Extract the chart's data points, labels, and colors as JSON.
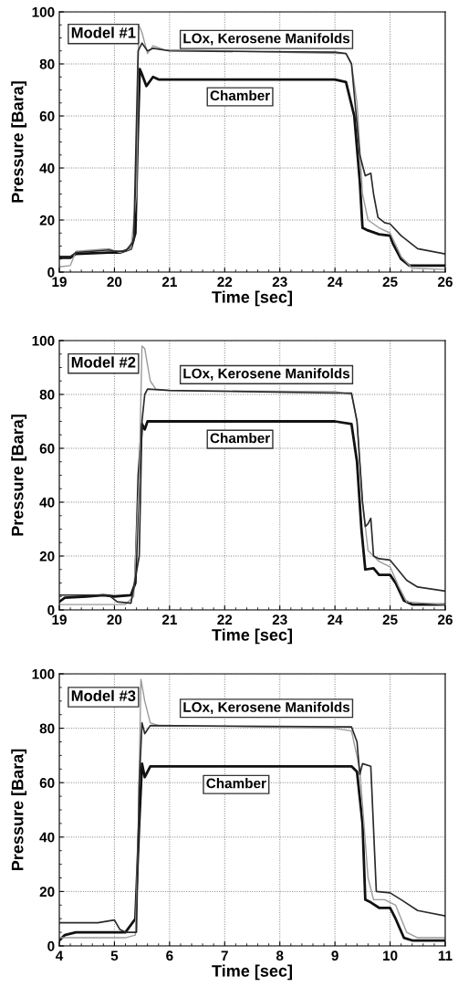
{
  "chart_data": [
    {
      "type": "line",
      "xlabel": "Time [sec]",
      "ylabel": "Pressure [Bara]",
      "xlim": [
        19,
        26
      ],
      "ylim": [
        0,
        100
      ],
      "xticks": [
        19,
        20,
        21,
        22,
        23,
        24,
        25,
        26
      ],
      "yticks": [
        0,
        20,
        40,
        60,
        80,
        100
      ],
      "grid": true,
      "annotations": [
        "Model #1",
        "LOx, Kerosene Manifolds",
        "Chamber"
      ],
      "series": [
        {
          "color": "#111111",
          "x": [
            19,
            19.2,
            19.3,
            19.9,
            20.1,
            20.3,
            20.38,
            20.42,
            20.46,
            20.5,
            20.58,
            20.7,
            20.8,
            24,
            24.2,
            24.35,
            24.45,
            24.5,
            24.6,
            24.8,
            25,
            25.05,
            25.2,
            25.35,
            26
          ],
          "values": [
            5.5,
            5.5,
            7,
            7.5,
            7.5,
            9,
            15,
            50,
            78,
            76,
            71.5,
            75,
            74,
            74,
            73,
            60,
            35,
            17,
            16,
            14.5,
            14,
            11,
            5,
            2.5,
            2.5
          ]
        },
        {
          "color": "#9a9a9a",
          "x": [
            19,
            19.2,
            19.3,
            19.9,
            20.1,
            20.3,
            20.4,
            20.44,
            20.5,
            20.6,
            20.7,
            20.9,
            24,
            24.2,
            24.3,
            24.4,
            24.5,
            24.6,
            24.8,
            25,
            25.2,
            25.4,
            26
          ],
          "values": [
            2,
            2.5,
            8,
            9,
            7.5,
            9,
            30,
            95,
            92,
            84,
            87,
            85.5,
            84,
            84,
            80,
            65,
            30,
            20,
            17,
            15,
            6,
            1.5,
            1
          ]
        },
        {
          "color": "#2a2a2a",
          "x": [
            19,
            19.2,
            19.3,
            19.9,
            20,
            20.2,
            20.35,
            20.43,
            20.5,
            20.6,
            20.7,
            21,
            24,
            24.2,
            24.3,
            24.45,
            24.55,
            24.65,
            24.7,
            24.78,
            24.9,
            25,
            25.2,
            25.5,
            26
          ],
          "values": [
            6,
            6,
            7.5,
            8.5,
            8,
            8,
            12,
            85,
            88,
            85,
            86,
            85,
            84.5,
            84,
            80,
            45,
            37,
            38,
            30,
            21,
            19,
            18.5,
            14,
            9,
            7
          ]
        }
      ]
    },
    {
      "type": "line",
      "xlabel": "Time [sec]",
      "ylabel": "Pressure [Bara]",
      "xlim": [
        19,
        26
      ],
      "ylim": [
        0,
        100
      ],
      "xticks": [
        19,
        20,
        21,
        22,
        23,
        24,
        25,
        26
      ],
      "yticks": [
        0,
        20,
        40,
        60,
        80,
        100
      ],
      "grid": true,
      "annotations": [
        "Model #2",
        "LOx, Kerosene Manifolds",
        "Chamber"
      ],
      "series": [
        {
          "color": "#111111",
          "x": [
            19,
            19.1,
            19.5,
            19.8,
            20,
            20.3,
            20.38,
            20.44,
            20.5,
            20.55,
            20.6,
            24,
            24.3,
            24.4,
            24.48,
            24.55,
            24.7,
            24.8,
            25,
            25.1,
            25.25,
            25.4,
            26
          ],
          "values": [
            3,
            4.5,
            5,
            5.5,
            5,
            5.5,
            10,
            50,
            69,
            67,
            70,
            70,
            69,
            55,
            30,
            15,
            15.5,
            13,
            13,
            10,
            3.5,
            2,
            2
          ]
        },
        {
          "color": "#9a9a9a",
          "x": [
            19,
            20.2,
            20.35,
            20.45,
            20.5,
            20.55,
            20.65,
            20.75,
            21,
            24,
            24.3,
            24.4,
            24.5,
            24.6,
            24.8,
            25,
            25.15,
            25.3,
            26
          ],
          "values": [
            2,
            2,
            5,
            50,
            98,
            97,
            85,
            82,
            81.5,
            81,
            80,
            70,
            40,
            22,
            18,
            16,
            9,
            3,
            2
          ]
        },
        {
          "color": "#2a2a2a",
          "x": [
            19,
            19.9,
            20.05,
            20.3,
            20.45,
            20.5,
            20.55,
            20.6,
            21,
            24,
            24.3,
            24.4,
            24.5,
            24.55,
            24.6,
            24.65,
            24.7,
            24.8,
            25,
            25.1,
            25.3,
            25.5,
            26
          ],
          "values": [
            5.5,
            5.5,
            3,
            2.5,
            20,
            70,
            80,
            82,
            81.5,
            80.5,
            80.5,
            70,
            40,
            31,
            32,
            34,
            20,
            19,
            18.5,
            16,
            11,
            8.5,
            7
          ]
        }
      ]
    },
    {
      "type": "line",
      "xlabel": "Time [sec]",
      "ylabel": "Pressure [Bara]",
      "xlim": [
        4,
        11
      ],
      "ylim": [
        0,
        100
      ],
      "xticks": [
        4,
        5,
        6,
        7,
        8,
        9,
        10,
        11
      ],
      "yticks": [
        0,
        20,
        40,
        60,
        80,
        100
      ],
      "grid": true,
      "annotations": [
        "Model #3",
        "LOx, Kerosene Manifolds",
        "Chamber"
      ],
      "series": [
        {
          "color": "#111111",
          "x": [
            4,
            4.1,
            4.3,
            5.2,
            5.38,
            5.45,
            5.5,
            5.55,
            5.65,
            9.3,
            9.4,
            9.5,
            9.55,
            9.65,
            9.8,
            10,
            10.1,
            10.25,
            10.4,
            11
          ],
          "values": [
            2,
            4,
            5,
            5,
            10,
            45,
            67,
            62,
            66,
            66,
            64,
            45,
            17,
            16,
            14,
            14,
            10,
            3,
            2,
            2
          ]
        },
        {
          "color": "#9a9a9a",
          "x": [
            4,
            5.2,
            5.38,
            5.43,
            5.48,
            5.55,
            5.65,
            5.8,
            9,
            9.3,
            9.45,
            9.6,
            9.7,
            9.9,
            10.1,
            10.3,
            10.5,
            11
          ],
          "values": [
            3,
            3,
            4,
            40,
            98,
            90,
            82,
            81,
            80,
            79,
            65,
            25,
            17,
            17,
            15,
            5,
            3,
            3
          ]
        },
        {
          "color": "#2a2a2a",
          "x": [
            4,
            4.7,
            5,
            5.1,
            5.2,
            5.4,
            5.45,
            5.5,
            5.55,
            5.65,
            9.3,
            9.4,
            9.45,
            9.5,
            9.65,
            9.75,
            10,
            10.2,
            10.5,
            11
          ],
          "values": [
            8.5,
            8.5,
            9.5,
            6,
            5,
            5,
            60,
            82,
            78,
            81,
            80.5,
            75,
            63,
            67,
            66,
            20,
            19.5,
            17,
            13,
            11
          ]
        }
      ]
    }
  ]
}
